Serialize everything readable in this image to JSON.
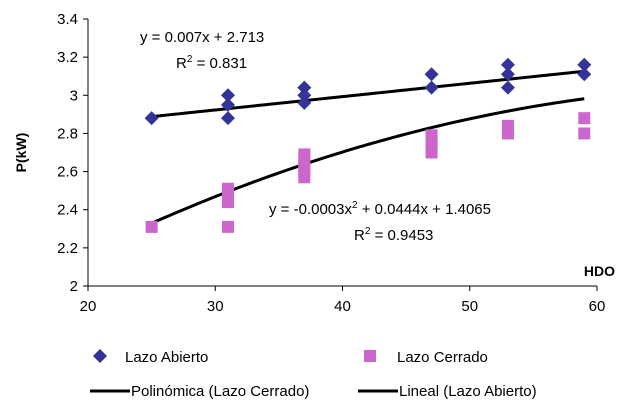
{
  "chart_data": {
    "type": "scatter",
    "xlabel": "HDO",
    "ylabel": "P(kW)",
    "xlim": [
      20,
      60
    ],
    "ylim": [
      2,
      3.4
    ],
    "xticks": [
      20,
      30,
      40,
      50,
      60
    ],
    "yticks": [
      2,
      2.2,
      2.4,
      2.6,
      2.8,
      3,
      3.2,
      3.4
    ],
    "grid": false,
    "legend_position": "bottom",
    "series": [
      {
        "name": "Lazo Abierto",
        "marker": "diamond",
        "color": "#333399",
        "points": [
          [
            25,
            2.88
          ],
          [
            31,
            3.0
          ],
          [
            31,
            2.95
          ],
          [
            31,
            2.88
          ],
          [
            37,
            3.04
          ],
          [
            37,
            3.0
          ],
          [
            37,
            2.96
          ],
          [
            47,
            3.11
          ],
          [
            47,
            3.04
          ],
          [
            53,
            3.16
          ],
          [
            53,
            3.11
          ],
          [
            53,
            3.04
          ],
          [
            59,
            3.16
          ],
          [
            59,
            3.11
          ]
        ]
      },
      {
        "name": "Lazo Cerrado",
        "marker": "square",
        "color": "#cc66cc",
        "points": [
          [
            25,
            2.31
          ],
          [
            31,
            2.51
          ],
          [
            31,
            2.47
          ],
          [
            31,
            2.44
          ],
          [
            31,
            2.31
          ],
          [
            37,
            2.69
          ],
          [
            37,
            2.66
          ],
          [
            37,
            2.63
          ],
          [
            37,
            2.6
          ],
          [
            37,
            2.57
          ],
          [
            47,
            2.79
          ],
          [
            47,
            2.76
          ],
          [
            47,
            2.73
          ],
          [
            47,
            2.7
          ],
          [
            53,
            2.84
          ],
          [
            53,
            2.8
          ],
          [
            59,
            2.88
          ],
          [
            59,
            2.8
          ]
        ]
      }
    ],
    "trendlines": [
      {
        "name": "Lineal (Lazo Abierto)",
        "kind": "linear",
        "coefficients": [
          0.007,
          2.713
        ],
        "x_range": [
          25,
          59
        ],
        "equation_text": "y = 0.007x + 2.713",
        "r2_text": "= 0.831"
      },
      {
        "name": "Polinómica (Lazo Cerrado)",
        "kind": "poly2",
        "coefficients": [
          -0.0003,
          0.0444,
          1.4065
        ],
        "x_range": [
          25,
          59
        ],
        "equation_text_parts": [
          "y = -0.0003x",
          "2",
          " + 0.0444x + 1.4065"
        ],
        "r2_text": "= 0.9453"
      }
    ],
    "r2_prefix": "R",
    "r2_superscript": "2",
    "legend": [
      {
        "label": "Lazo Abierto",
        "symbol": "diamond"
      },
      {
        "label": "Lazo Cerrado",
        "symbol": "square"
      },
      {
        "label": "Polinómica (Lazo Cerrado)",
        "symbol": "line"
      },
      {
        "label": "Lineal (Lazo Abierto)",
        "symbol": "line"
      }
    ]
  }
}
